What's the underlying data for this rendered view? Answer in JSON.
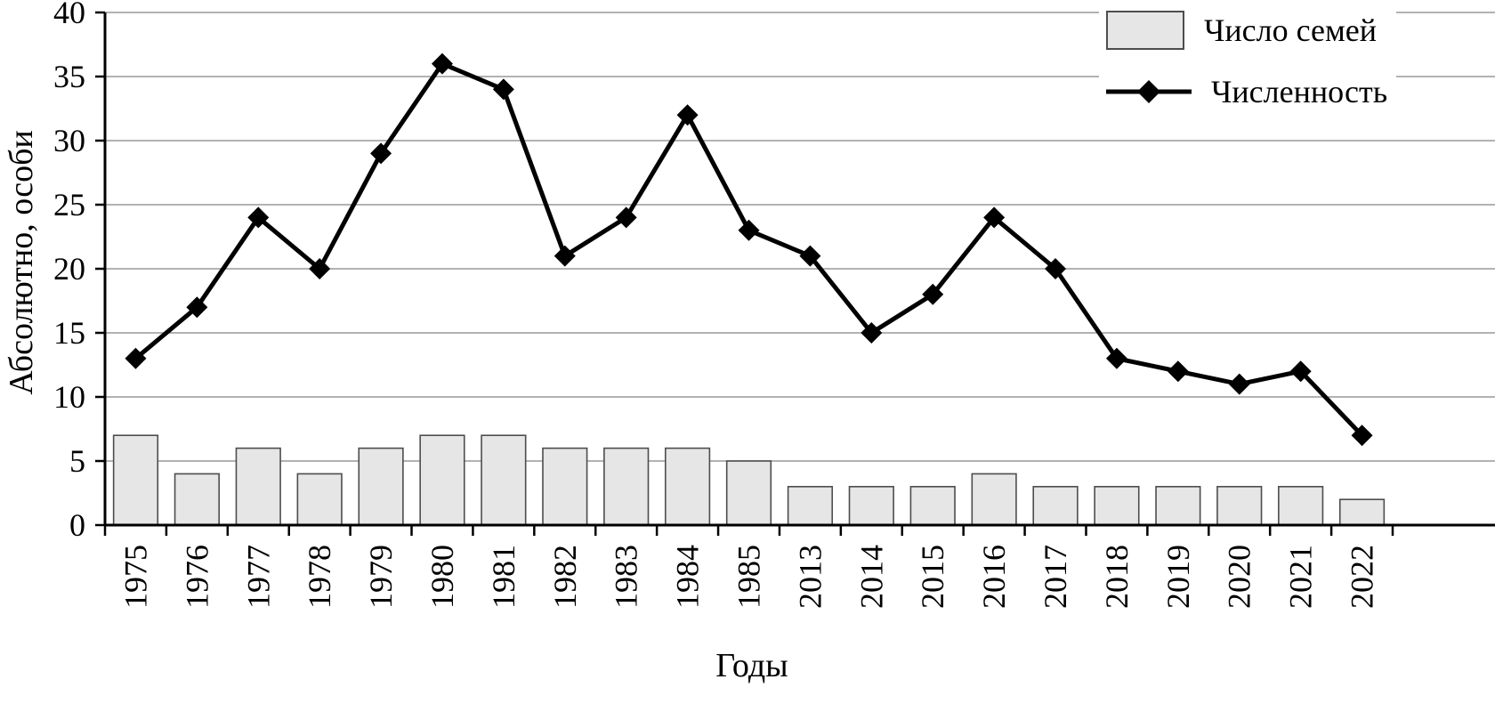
{
  "chart_data": {
    "type": "bar",
    "combo": "bar+line",
    "title": "",
    "categories": [
      "1975",
      "1976",
      "1977",
      "1978",
      "1979",
      "1980",
      "1981",
      "1982",
      "1983",
      "1984",
      "1985",
      "2013",
      "2014",
      "2015",
      "2016",
      "2017",
      "2018",
      "2019",
      "2020",
      "2021",
      "2022"
    ],
    "series": [
      {
        "name": "Число семей",
        "type": "bar",
        "values": [
          7,
          4,
          6,
          4,
          6,
          7,
          7,
          6,
          6,
          6,
          5,
          3,
          3,
          3,
          4,
          3,
          3,
          3,
          3,
          3,
          2
        ]
      },
      {
        "name": "Численность",
        "type": "line",
        "values": [
          13,
          17,
          24,
          20,
          29,
          36,
          34,
          21,
          24,
          32,
          23,
          21,
          15,
          18,
          24,
          20,
          13,
          12,
          11,
          12,
          7
        ]
      }
    ],
    "xlabel": "Годы",
    "ylabel": "Абсолютно, особи",
    "ylim": [
      0,
      40
    ],
    "ytick_step": 5,
    "yticks": [
      0,
      5,
      10,
      15,
      20,
      25,
      30,
      35,
      40
    ],
    "grid": true,
    "legend_position": "top-right",
    "colors": {
      "background": "#ffffff",
      "bar_fill": "#e6e6e6",
      "bar_stroke": "#4d4d4d",
      "line": "#000000",
      "marker": "#000000",
      "grid": "#999999",
      "axis": "#000000",
      "text": "#000000"
    }
  }
}
